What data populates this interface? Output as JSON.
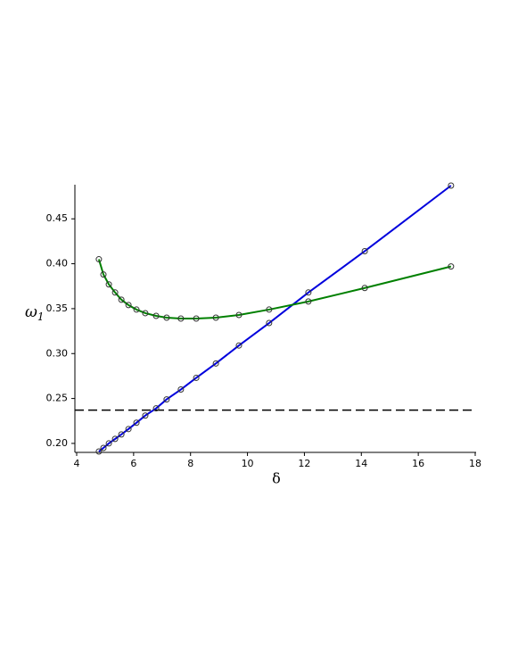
{
  "chart_data": {
    "type": "line",
    "xlabel": "δ",
    "ylabel": {
      "symbol": "ω",
      "subscript": "1"
    },
    "x": [
      4.78,
      4.94,
      5.13,
      5.35,
      5.57,
      5.82,
      6.1,
      6.41,
      6.79,
      7.16,
      7.66,
      8.2,
      8.89,
      9.7,
      10.76,
      12.14,
      14.12,
      17.15
    ],
    "series": [
      {
        "color": "#0000dd",
        "values": [
          0.191,
          0.195,
          0.2,
          0.205,
          0.21,
          0.216,
          0.223,
          0.231,
          0.239,
          0.249,
          0.26,
          0.273,
          0.289,
          0.309,
          0.334,
          0.368,
          0.414,
          0.487
        ]
      },
      {
        "color": "#008000",
        "values": [
          0.405,
          0.388,
          0.377,
          0.368,
          0.36,
          0.354,
          0.349,
          0.345,
          0.342,
          0.34,
          0.339,
          0.339,
          0.34,
          0.343,
          0.349,
          0.358,
          0.373,
          0.397
        ]
      }
    ],
    "hline": {
      "value": 0.237,
      "color": "#000000",
      "dashed": true
    },
    "markers": true,
    "xlim": [
      4,
      18
    ],
    "xticks": [
      4,
      6,
      8,
      10,
      12,
      14,
      16,
      18
    ],
    "ylim": [
      0.19,
      0.487
    ],
    "yticks": [
      {
        "value": 0.2,
        "label": "0.20"
      },
      {
        "value": 0.25,
        "label": "0.25"
      },
      {
        "value": 0.3,
        "label": "0.30"
      },
      {
        "value": 0.35,
        "label": "0.35"
      },
      {
        "value": 0.4,
        "label": "0.40"
      },
      {
        "value": 0.45,
        "label": "0.45"
      }
    ]
  }
}
